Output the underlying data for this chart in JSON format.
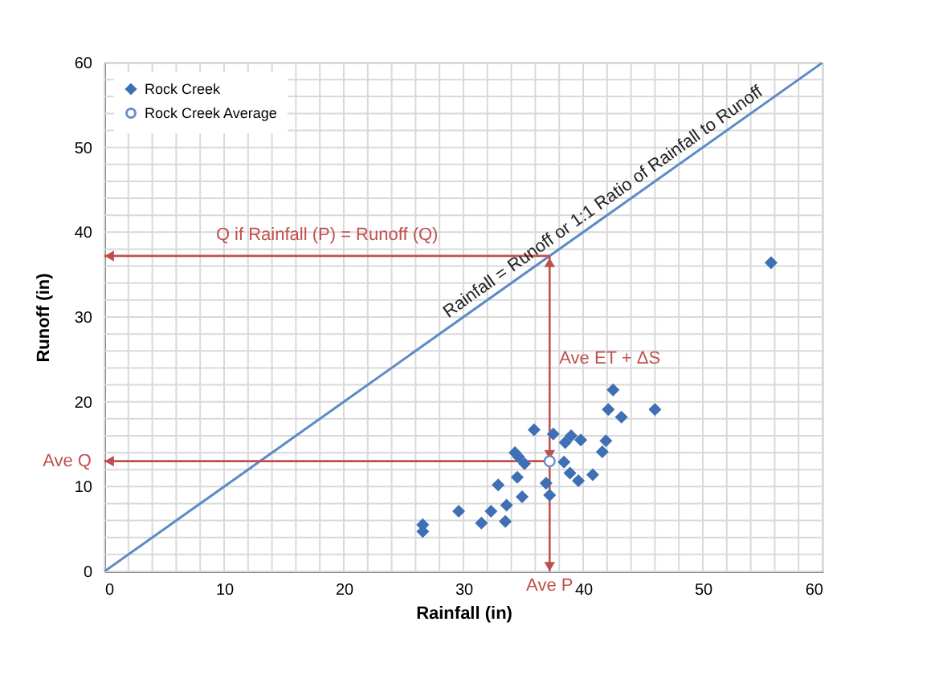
{
  "chart_data": {
    "type": "scatter",
    "xlabel": "Rainfall (in)",
    "ylabel": "Runoff (in)",
    "xlim": [
      0,
      60
    ],
    "ylim": [
      0,
      60
    ],
    "xticks": [
      0,
      {
        "value": 2,
        "label": null
      },
      {
        "value": 4,
        "label": null
      },
      {
        "value": 6,
        "label": null
      },
      {
        "value": 8,
        "label": null
      },
      10,
      {
        "value": 12,
        "label": null
      },
      {
        "value": 14,
        "label": null
      },
      {
        "value": 16,
        "label": null
      },
      {
        "value": 18,
        "label": null
      },
      20,
      {
        "value": 22,
        "label": null
      },
      {
        "value": 24,
        "label": null
      },
      {
        "value": 26,
        "label": null
      },
      {
        "value": 28,
        "label": null
      },
      30,
      {
        "value": 32,
        "label": null
      },
      {
        "value": 34,
        "label": null
      },
      {
        "value": 36,
        "label": null
      },
      {
        "value": 38,
        "label": null
      },
      40,
      {
        "value": 42,
        "label": null
      },
      {
        "value": 44,
        "label": null
      },
      {
        "value": 46,
        "label": null
      },
      {
        "value": 48,
        "label": null
      },
      50,
      {
        "value": 52,
        "label": null
      },
      {
        "value": 54,
        "label": null
      },
      {
        "value": 56,
        "label": null
      },
      {
        "value": 58,
        "label": null
      },
      60
    ],
    "yticks": [
      0,
      {
        "value": 2,
        "label": null
      },
      {
        "value": 4,
        "label": null
      },
      {
        "value": 6,
        "label": null
      },
      {
        "value": 8,
        "label": null
      },
      10,
      {
        "value": 12,
        "label": null
      },
      {
        "value": 14,
        "label": null
      },
      {
        "value": 16,
        "label": null
      },
      {
        "value": 18,
        "label": null
      },
      20,
      {
        "value": 22,
        "label": null
      },
      {
        "value": 24,
        "label": null
      },
      {
        "value": 26,
        "label": null
      },
      {
        "value": 28,
        "label": null
      },
      30,
      {
        "value": 32,
        "label": null
      },
      {
        "value": 34,
        "label": null
      },
      {
        "value": 36,
        "label": null
      },
      {
        "value": 38,
        "label": null
      },
      40,
      {
        "value": 42,
        "label": null
      },
      {
        "value": 44,
        "label": null
      },
      {
        "value": 46,
        "label": null
      },
      {
        "value": 48,
        "label": null
      },
      50,
      {
        "value": 52,
        "label": null
      },
      {
        "value": 54,
        "label": null
      },
      {
        "value": 56,
        "label": null
      },
      {
        "value": 58,
        "label": null
      },
      60
    ],
    "grid": true,
    "legend": "top left",
    "series": [
      {
        "name": "Rock Creek",
        "color": "#3f6fb5",
        "marker": "diamond",
        "x": [
          26.6,
          26.6,
          29.6,
          31.5,
          32.3,
          33.5,
          33.6,
          32.9,
          34.9,
          34.5,
          34.3,
          34.6,
          35.1,
          35.9,
          36.9,
          37.2,
          37.5,
          38.4,
          38.5,
          38.9,
          39.0,
          39.6,
          39.8,
          40.8,
          41.6,
          41.9,
          42.1,
          42.5,
          43.2,
          46.0,
          55.7
        ],
        "values": [
          5.5,
          4.7,
          7.1,
          5.7,
          7.1,
          5.9,
          7.8,
          10.2,
          8.8,
          11.1,
          14.0,
          13.5,
          12.7,
          16.7,
          10.4,
          9.0,
          16.2,
          12.9,
          15.2,
          11.6,
          16.0,
          10.7,
          15.5,
          11.4,
          14.1,
          15.4,
          19.1,
          21.4,
          18.2,
          19.1,
          36.4
        ]
      },
      {
        "name": "Rock Creek Average",
        "color": "#6a8fc8",
        "marker": "circle",
        "x": [
          37.2
        ],
        "values": [
          13.0
        ]
      },
      {
        "type": "line",
        "color": "#5b8ac6",
        "x": [
          0,
          60
        ],
        "values": [
          0,
          60
        ],
        "marker": "none"
      }
    ],
    "annotations": [
      "Q if Rainfall (P) = Runoff (Q)",
      "Ave ET + ΔS",
      "Ave Q",
      "Ave P",
      {
        "text": "Rainfall = Runoff  or  1:1 Ratio of Rainfall to Runoff",
        "x": 42.3,
        "y": 42.3
      }
    ]
  }
}
